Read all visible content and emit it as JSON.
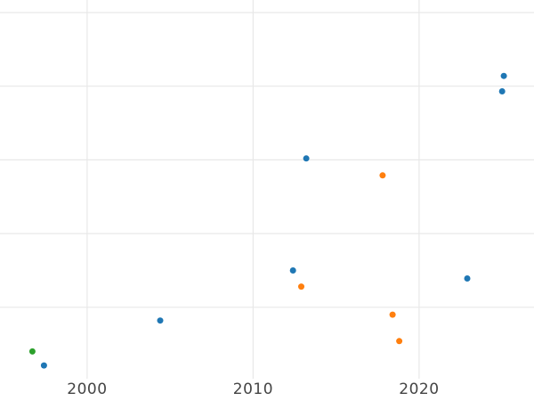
{
  "chart_data": {
    "type": "scatter",
    "title": "",
    "xlabel": "",
    "ylabel": "",
    "x_tick_labels": [
      "2000",
      "2010",
      "2020"
    ],
    "x_tick_values": [
      2000,
      2010,
      2020
    ],
    "xlim": [
      1994.75,
      2026.92
    ],
    "ylim": [
      0.03,
      5.17
    ],
    "y_gridline_values": [
      1,
      2,
      3,
      4,
      5
    ],
    "y_tick_labels": [],
    "grid": true,
    "legend_position": "none",
    "note": "y-axis tick labels are cropped out of view; y values estimated in unlabeled gridline units",
    "marker_radius": 3.5,
    "colors": {
      "background": "#ffffff",
      "grid": "#e8e8e8",
      "tick_label": "#444444",
      "blue": "#1f77b4",
      "orange": "#ff7f0e",
      "green": "#2ca02c"
    },
    "series": [
      {
        "name": "series-blue",
        "color": "#1f77b4",
        "points": [
          {
            "x": 1997.4,
            "y": 0.21
          },
          {
            "x": 2004.4,
            "y": 0.82
          },
          {
            "x": 2012.4,
            "y": 1.5
          },
          {
            "x": 2013.2,
            "y": 3.02
          },
          {
            "x": 2022.9,
            "y": 1.39
          },
          {
            "x": 2025.0,
            "y": 3.93
          },
          {
            "x": 2025.1,
            "y": 4.14
          }
        ]
      },
      {
        "name": "series-orange",
        "color": "#ff7f0e",
        "points": [
          {
            "x": 2012.9,
            "y": 1.28
          },
          {
            "x": 2017.8,
            "y": 2.79
          },
          {
            "x": 2018.4,
            "y": 0.9
          },
          {
            "x": 2018.8,
            "y": 0.54
          }
        ]
      },
      {
        "name": "series-green",
        "color": "#2ca02c",
        "points": [
          {
            "x": 1996.7,
            "y": 0.4
          }
        ]
      }
    ]
  }
}
